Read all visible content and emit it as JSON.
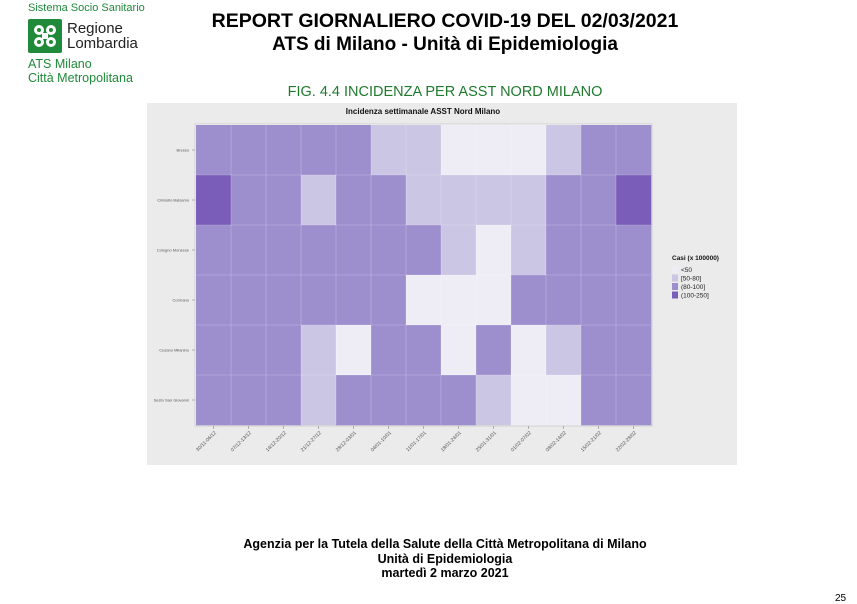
{
  "logo": {
    "system": "Sistema Socio Sanitario",
    "region_line1": "Regione",
    "region_line2": "Lombardia",
    "ats_line1": "ATS Milano",
    "ats_line2": "Città Metropolitana",
    "brand_color": "#1f8a3a"
  },
  "header": {
    "title_line1": "REPORT GIORNALIERO COVID-19 DEL 02/03/2021",
    "title_line2": "ATS di Milano - Unità di Epidemiologia"
  },
  "figure_title": "FIG. 4.4 INCIDENZA PER ASST NORD MILANO",
  "chart_data": {
    "type": "heatmap",
    "title": "Incidenza settimanale ASST Nord Milano",
    "x_categories": [
      "30/11-06/12",
      "07/12-13/12",
      "14/12-20/12",
      "21/12-27/12",
      "28/12-03/01",
      "04/01-10/01",
      "11/01-17/01",
      "18/01-24/01",
      "25/01-31/01",
      "01/02-07/02",
      "08/02-14/02",
      "15/02-21/02",
      "22/02-28/02"
    ],
    "y_categories": [
      "Bresso",
      "Cinisello Balsamo",
      "Cologno Monzese",
      "Cormano",
      "Cusano Milanino",
      "Sesto San Giovanni"
    ],
    "legend": {
      "title": "Casi (x 100000)",
      "position": "right",
      "levels": [
        "<50",
        "[50-80]",
        "(80-100]",
        "(100-250]"
      ],
      "colors": [
        "#eeecf5",
        "#cbc6e4",
        "#9d8ece",
        "#7a5db8"
      ]
    },
    "grid": true,
    "values": [
      [
        2,
        2,
        2,
        2,
        2,
        1,
        1,
        0,
        0,
        0,
        1,
        2,
        2
      ],
      [
        3,
        2,
        2,
        1,
        2,
        2,
        1,
        1,
        1,
        1,
        2,
        2,
        3
      ],
      [
        2,
        2,
        2,
        2,
        2,
        2,
        2,
        1,
        0,
        1,
        2,
        2,
        2
      ],
      [
        2,
        2,
        2,
        2,
        2,
        2,
        0,
        0,
        0,
        2,
        2,
        2,
        2
      ],
      [
        2,
        2,
        2,
        1,
        0,
        2,
        2,
        0,
        2,
        0,
        1,
        2,
        2
      ],
      [
        2,
        2,
        2,
        1,
        2,
        2,
        2,
        2,
        1,
        0,
        0,
        2,
        2
      ]
    ]
  },
  "footer": {
    "line1": "Agenzia per la Tutela della Salute della Città Metropolitana di Milano",
    "line2": "Unità di Epidemiologia",
    "line3": "martedì 2 marzo 2021"
  },
  "page_number": "25"
}
